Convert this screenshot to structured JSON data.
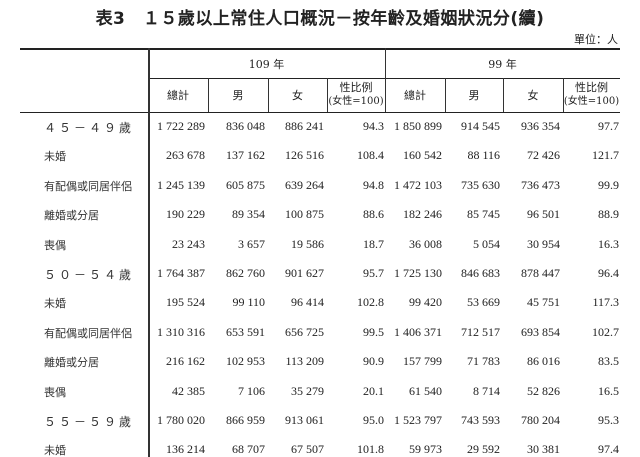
{
  "title": "表3　１５歲以上常住人口概況－按年齡及婚姻狀況分(續)",
  "unit": "單位：人",
  "header": {
    "year1": "109 年",
    "year2": "99 年",
    "cols": [
      "總計",
      "男",
      "女",
      "性比例",
      "總計",
      "男",
      "女",
      "性比例"
    ],
    "ratio_note": "(女性=100)"
  },
  "rows": [
    {
      "label": "４５－４９歲",
      "group": true,
      "values": [
        "1 722 289",
        "836 048",
        "886 241",
        "94.3",
        "1 850 899",
        "914 545",
        "936 354",
        "97.7"
      ]
    },
    {
      "label": "未婚",
      "values": [
        "263 678",
        "137 162",
        "126 516",
        "108.4",
        "160 542",
        "88 116",
        "72 426",
        "121.7"
      ]
    },
    {
      "label": "有配偶或同居伴侶",
      "values": [
        "1 245 139",
        "605 875",
        "639 264",
        "94.8",
        "1 472 103",
        "735 630",
        "736 473",
        "99.9"
      ]
    },
    {
      "label": "離婚或分居",
      "values": [
        "190 229",
        "89 354",
        "100 875",
        "88.6",
        "182 246",
        "85 745",
        "96 501",
        "88.9"
      ]
    },
    {
      "label": "喪偶",
      "values": [
        "23 243",
        "3 657",
        "19 586",
        "18.7",
        "36 008",
        "5 054",
        "30 954",
        "16.3"
      ]
    },
    {
      "label": "５０－５４歲",
      "group": true,
      "values": [
        "1 764 387",
        "862 760",
        "901 627",
        "95.7",
        "1 725 130",
        "846 683",
        "878 447",
        "96.4"
      ]
    },
    {
      "label": "未婚",
      "values": [
        "195 524",
        "99 110",
        "96 414",
        "102.8",
        "99 420",
        "53 669",
        "45 751",
        "117.3"
      ]
    },
    {
      "label": "有配偶或同居伴侶",
      "values": [
        "1 310 316",
        "653 591",
        "656 725",
        "99.5",
        "1 406 371",
        "712 517",
        "693 854",
        "102.7"
      ]
    },
    {
      "label": "離婚或分居",
      "values": [
        "216 162",
        "102 953",
        "113 209",
        "90.9",
        "157 799",
        "71 783",
        "86 016",
        "83.5"
      ]
    },
    {
      "label": "喪偶",
      "values": [
        "42 385",
        "7 106",
        "35 279",
        "20.1",
        "61 540",
        "8 714",
        "52 826",
        "16.5"
      ]
    },
    {
      "label": "５５－５９歲",
      "group": true,
      "values": [
        "1 780 020",
        "866 959",
        "913 061",
        "95.0",
        "1 523 797",
        "743 593",
        "780 204",
        "95.3"
      ]
    },
    {
      "label": "未婚",
      "values": [
        "136 214",
        "68 707",
        "67 507",
        "101.8",
        "59 973",
        "29 592",
        "30 381",
        "97.4"
      ]
    }
  ]
}
